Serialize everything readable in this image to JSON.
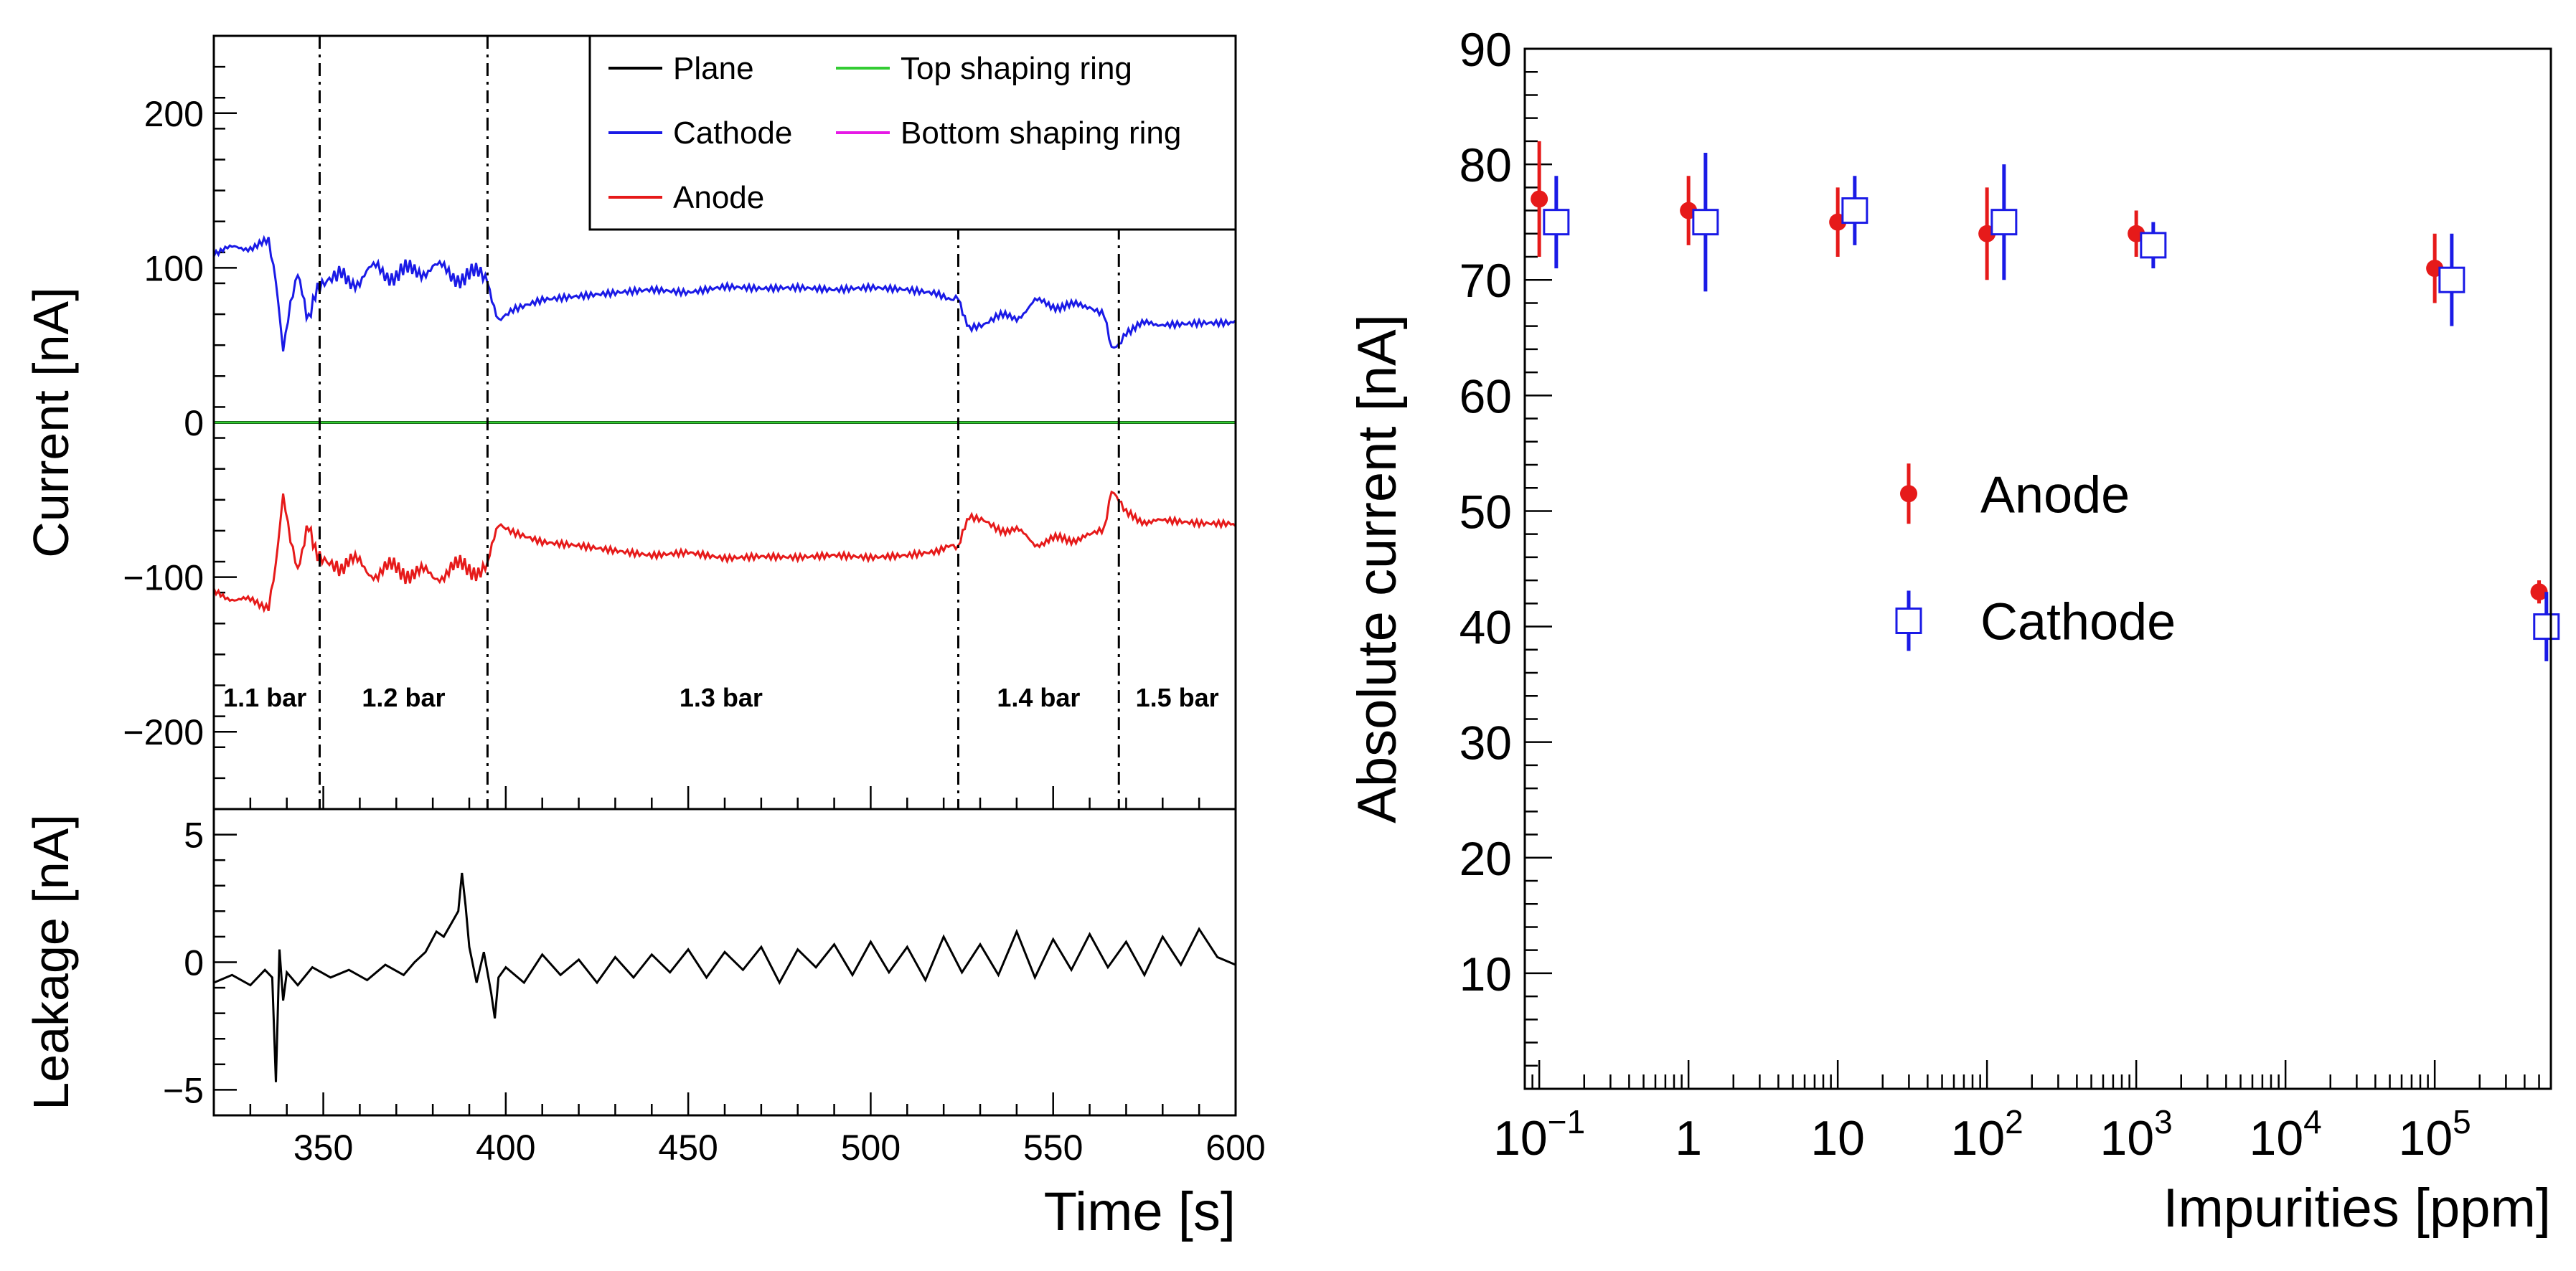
{
  "chart_data": [
    {
      "type": "line",
      "panel": "top-left",
      "ylabel": "Current [nA]",
      "xlim": [
        320,
        600
      ],
      "ylim": [
        -250,
        250
      ],
      "yticks": [
        -200,
        -100,
        0,
        100,
        200
      ],
      "ytick_labels": [
        "−200",
        "−100",
        "0",
        "100",
        "200"
      ],
      "legend": {
        "placement": "top-right",
        "entries": [
          {
            "label": "Plane",
            "color": "#000000"
          },
          {
            "label": "Top shaping ring",
            "color": "#33cc33"
          },
          {
            "label": "Cathode",
            "color": "#1a1ae6"
          },
          {
            "label": "Bottom shaping ring",
            "color": "#e619e6"
          },
          {
            "label": "Anode",
            "color": "#e61a1a"
          }
        ]
      },
      "boundaries": [
        349,
        395,
        524,
        568
      ],
      "region_labels": [
        {
          "x": 334,
          "text": "1.1 bar"
        },
        {
          "x": 372,
          "text": "1.2 bar"
        },
        {
          "x": 459,
          "text": "1.3 bar"
        },
        {
          "x": 546,
          "text": "1.4 bar"
        },
        {
          "x": 584,
          "text": "1.5 bar"
        }
      ],
      "series": [
        {
          "name": "Cathode",
          "color": "#1a1ae6",
          "x": [
            320,
            325,
            330,
            335,
            337,
            339,
            341,
            343,
            346,
            349,
            355,
            360,
            365,
            370,
            375,
            380,
            385,
            390,
            395,
            398,
            402,
            410,
            420,
            430,
            440,
            450,
            460,
            470,
            480,
            490,
            500,
            510,
            518,
            522,
            524,
            527,
            531,
            535,
            540,
            545,
            550,
            555,
            560,
            564,
            566,
            568,
            570,
            575,
            580,
            590,
            600
          ],
          "y": [
            111,
            112,
            114,
            116,
            90,
            45,
            75,
            95,
            70,
            85,
            95,
            92,
            100,
            95,
            98,
            101,
            95,
            96,
            92,
            65,
            72,
            78,
            80,
            82,
            84,
            82,
            86,
            85,
            86,
            85,
            87,
            86,
            84,
            80,
            82,
            60,
            62,
            68,
            68,
            78,
            76,
            75,
            76,
            72,
            50,
            52,
            60,
            63,
            65,
            66,
            66
          ]
        },
        {
          "name": "Anode",
          "color": "#e61a1a",
          "x": [
            320,
            325,
            330,
            335,
            337,
            339,
            341,
            343,
            346,
            349,
            355,
            360,
            365,
            370,
            375,
            380,
            385,
            390,
            395,
            398,
            402,
            410,
            420,
            430,
            440,
            450,
            460,
            470,
            480,
            490,
            500,
            510,
            518,
            522,
            524,
            527,
            531,
            535,
            540,
            545,
            550,
            555,
            560,
            564,
            566,
            568,
            570,
            575,
            580,
            590,
            600
          ],
          "y": [
            -111,
            -113,
            -116,
            -118,
            -90,
            -45,
            -74,
            -94,
            -70,
            -84,
            -93,
            -91,
            -98,
            -94,
            -97,
            -100,
            -94,
            -95,
            -92,
            -65,
            -70,
            -76,
            -78,
            -81,
            -84,
            -82,
            -86,
            -85,
            -86,
            -85,
            -87,
            -86,
            -84,
            -80,
            -82,
            -60,
            -62,
            -68,
            -70,
            -78,
            -76,
            -75,
            -74,
            -71,
            -46,
            -52,
            -60,
            -63,
            -65,
            -67,
            -67
          ]
        },
        {
          "name": "Plane",
          "color": "#000000",
          "x": [
            320,
            600
          ],
          "y": [
            0,
            0
          ]
        },
        {
          "name": "Top shaping ring",
          "color": "#33cc33",
          "x": [
            320,
            600
          ],
          "y": [
            0,
            0
          ]
        }
      ]
    },
    {
      "type": "line",
      "panel": "bottom-left",
      "ylabel": "Leakage [nA]",
      "xlabel": "Time [s]",
      "xlim": [
        320,
        600
      ],
      "ylim": [
        -6,
        6
      ],
      "xticks": [
        350,
        400,
        450,
        500,
        550,
        600
      ],
      "yticks": [
        -5,
        0,
        5
      ],
      "ytick_labels": [
        "−5",
        "0",
        "5"
      ],
      "series": [
        {
          "name": "Leakage",
          "color": "#000000",
          "x": [
            320,
            325,
            330,
            334,
            336,
            337,
            338,
            339,
            340,
            343,
            347,
            352,
            357,
            362,
            367,
            372,
            375,
            378,
            381,
            383,
            385,
            387,
            388,
            389,
            390,
            392,
            394,
            396,
            397,
            398,
            400,
            405,
            410,
            415,
            420,
            425,
            430,
            435,
            440,
            445,
            450,
            455,
            460,
            465,
            470,
            475,
            480,
            485,
            490,
            495,
            500,
            505,
            510,
            515,
            520,
            525,
            530,
            535,
            540,
            545,
            550,
            555,
            560,
            565,
            570,
            575,
            580,
            585,
            590,
            595,
            600
          ],
          "y": [
            -0.8,
            -0.5,
            -0.9,
            -0.3,
            -0.6,
            -4.7,
            0.5,
            -1.5,
            -0.4,
            -0.9,
            -0.2,
            -0.6,
            -0.3,
            -0.7,
            -0.1,
            -0.5,
            0.0,
            0.4,
            1.2,
            1.0,
            1.5,
            2.0,
            3.5,
            2.2,
            0.6,
            -0.8,
            0.4,
            -1.2,
            -2.2,
            -0.6,
            -0.2,
            -0.8,
            0.3,
            -0.5,
            0.1,
            -0.8,
            0.2,
            -0.6,
            0.3,
            -0.4,
            0.5,
            -0.6,
            0.4,
            -0.3,
            0.6,
            -0.8,
            0.5,
            -0.2,
            0.7,
            -0.5,
            0.8,
            -0.4,
            0.6,
            -0.7,
            1.0,
            -0.4,
            0.7,
            -0.5,
            1.2,
            -0.6,
            0.9,
            -0.3,
            1.1,
            -0.2,
            0.8,
            -0.5,
            1.0,
            -0.1,
            1.3,
            0.2,
            -0.1
          ]
        }
      ]
    },
    {
      "type": "scatter",
      "panel": "right",
      "xlabel": "Impurities [ppm]",
      "ylabel": "Absolute current [nA]",
      "xscale": "log",
      "xlim": [
        0.08,
        600000
      ],
      "ylim": [
        0,
        90
      ],
      "yticks": [
        10,
        20,
        30,
        40,
        50,
        60,
        70,
        80,
        90
      ],
      "xticks": [
        0.1,
        1,
        10,
        100,
        1000,
        10000,
        100000
      ],
      "xtick_labels": [
        {
          "base": "10",
          "exp": "−1"
        },
        {
          "base": "1",
          "exp": ""
        },
        {
          "base": "10",
          "exp": ""
        },
        {
          "base": "10",
          "exp": "2"
        },
        {
          "base": "10",
          "exp": "3"
        },
        {
          "base": "10",
          "exp": "4"
        },
        {
          "base": "10",
          "exp": "5"
        }
      ],
      "legend": {
        "placement": "center-left",
        "entries": [
          "Anode",
          "Cathode"
        ]
      },
      "series": [
        {
          "name": "Anode",
          "color": "#e61a1a",
          "marker": "filled-circle",
          "x": [
            0.1,
            1,
            10,
            100,
            1000,
            100000,
            500000
          ],
          "y": [
            77,
            76,
            75,
            74,
            74,
            71,
            43
          ],
          "yerr": [
            5,
            3,
            3,
            4,
            2,
            3,
            1
          ]
        },
        {
          "name": "Cathode",
          "color": "#1a1ae6",
          "marker": "open-square",
          "x": [
            0.13,
            1.3,
            13,
            130,
            1300,
            130000,
            560000
          ],
          "y": [
            75,
            75,
            76,
            75,
            73,
            70,
            40
          ],
          "yerr": [
            4,
            6,
            3,
            5,
            2,
            4,
            3
          ]
        }
      ]
    }
  ]
}
